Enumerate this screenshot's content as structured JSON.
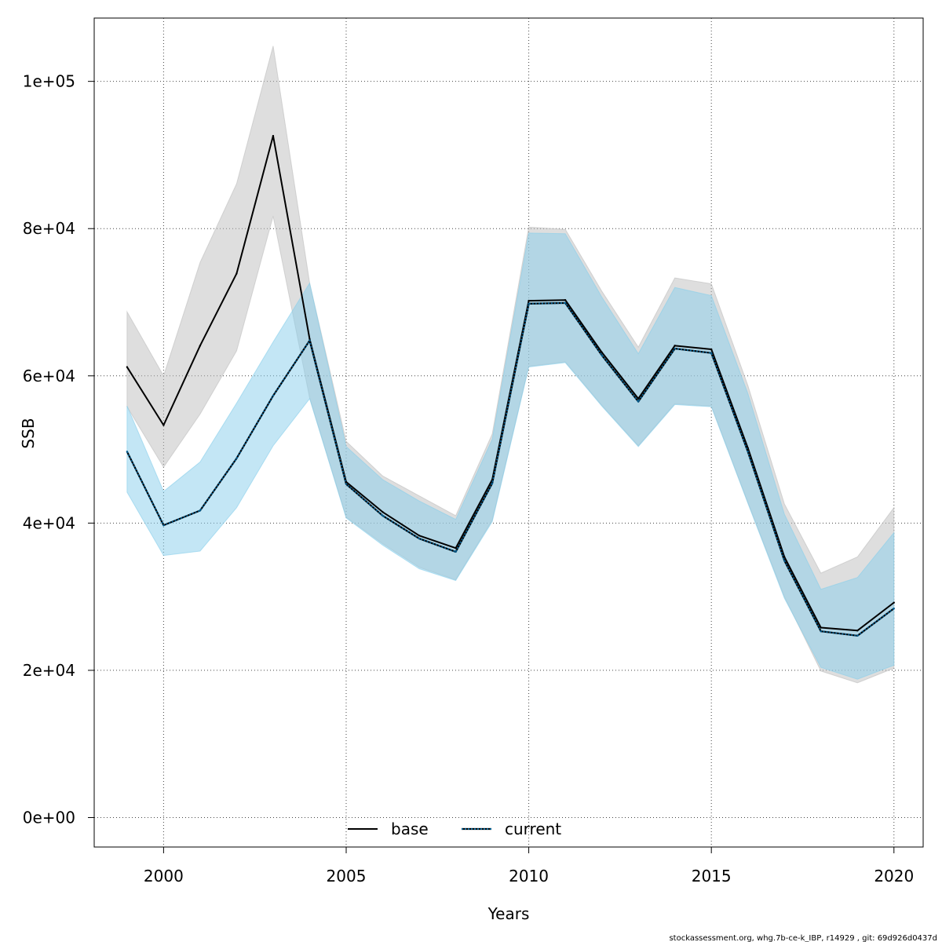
{
  "chart_data": {
    "type": "line",
    "title": "",
    "xlabel": "Years",
    "ylabel": "SSB",
    "xlim": [
      1998.1,
      2020.8
    ],
    "ylim": [
      -4000,
      108600
    ],
    "x_ticks": [
      2000,
      2005,
      2010,
      2015,
      2020
    ],
    "x_tick_labels": [
      "2000",
      "2005",
      "2010",
      "2015",
      "2020"
    ],
    "y_ticks": [
      0,
      20000,
      40000,
      60000,
      80000,
      100000
    ],
    "y_tick_labels": [
      "0e+00",
      "2e+04",
      "4e+04",
      "6e+04",
      "8e+04",
      "1e+05"
    ],
    "grid": true,
    "legend_position": "bottom-center",
    "x": [
      1999,
      2000,
      2001,
      2002,
      2003,
      2004,
      2005,
      2006,
      2007,
      2008,
      2009,
      2010,
      2011,
      2012,
      2013,
      2014,
      2015,
      2016,
      2017,
      2018,
      2019,
      2020
    ],
    "series": [
      {
        "name": "base",
        "line_color": "#000000",
        "line_style": "solid",
        "band_color": "#bebebe",
        "values": [
          61200,
          53300,
          64100,
          73900,
          92600,
          65000,
          45600,
          41500,
          38300,
          36600,
          45900,
          70200,
          70300,
          63200,
          56900,
          64100,
          63600,
          50200,
          35400,
          25800,
          25400,
          29200
        ],
        "lower": [
          55800,
          47600,
          54800,
          63400,
          81700,
          57000,
          40800,
          37200,
          34000,
          32300,
          40400,
          61300,
          61900,
          56000,
          50500,
          56200,
          55900,
          42800,
          30000,
          19900,
          18300,
          20300
        ],
        "upper": [
          68700,
          60000,
          75400,
          86100,
          104800,
          72600,
          51100,
          46400,
          43700,
          41000,
          52100,
          80200,
          79900,
          71500,
          63900,
          73300,
          72500,
          58700,
          42600,
          33200,
          35400,
          42100
        ]
      },
      {
        "name": "current",
        "line_color": "#005a8c",
        "line_style": "dotted",
        "band_color": "#87ceeb",
        "values": [
          49700,
          39700,
          41700,
          48800,
          57300,
          64800,
          45300,
          41000,
          37900,
          36100,
          45400,
          69800,
          69900,
          62800,
          56500,
          63700,
          63100,
          49700,
          34900,
          25300,
          24700,
          28400
        ],
        "lower": [
          44200,
          35600,
          36200,
          42100,
          50500,
          56900,
          40700,
          37000,
          33800,
          32200,
          40200,
          61200,
          61800,
          55900,
          50400,
          56100,
          55800,
          42700,
          29800,
          20400,
          18800,
          20700
        ],
        "upper": [
          55900,
          44300,
          48300,
          56300,
          64600,
          72600,
          50400,
          45900,
          43000,
          40500,
          51400,
          79400,
          79300,
          70700,
          63000,
          72000,
          70900,
          57600,
          41200,
          31000,
          32600,
          38700
        ]
      }
    ],
    "footer_note": "stockassessment.org, whg.7b-ce-k_IBP, r14929 , git: 69d926d0437d"
  }
}
